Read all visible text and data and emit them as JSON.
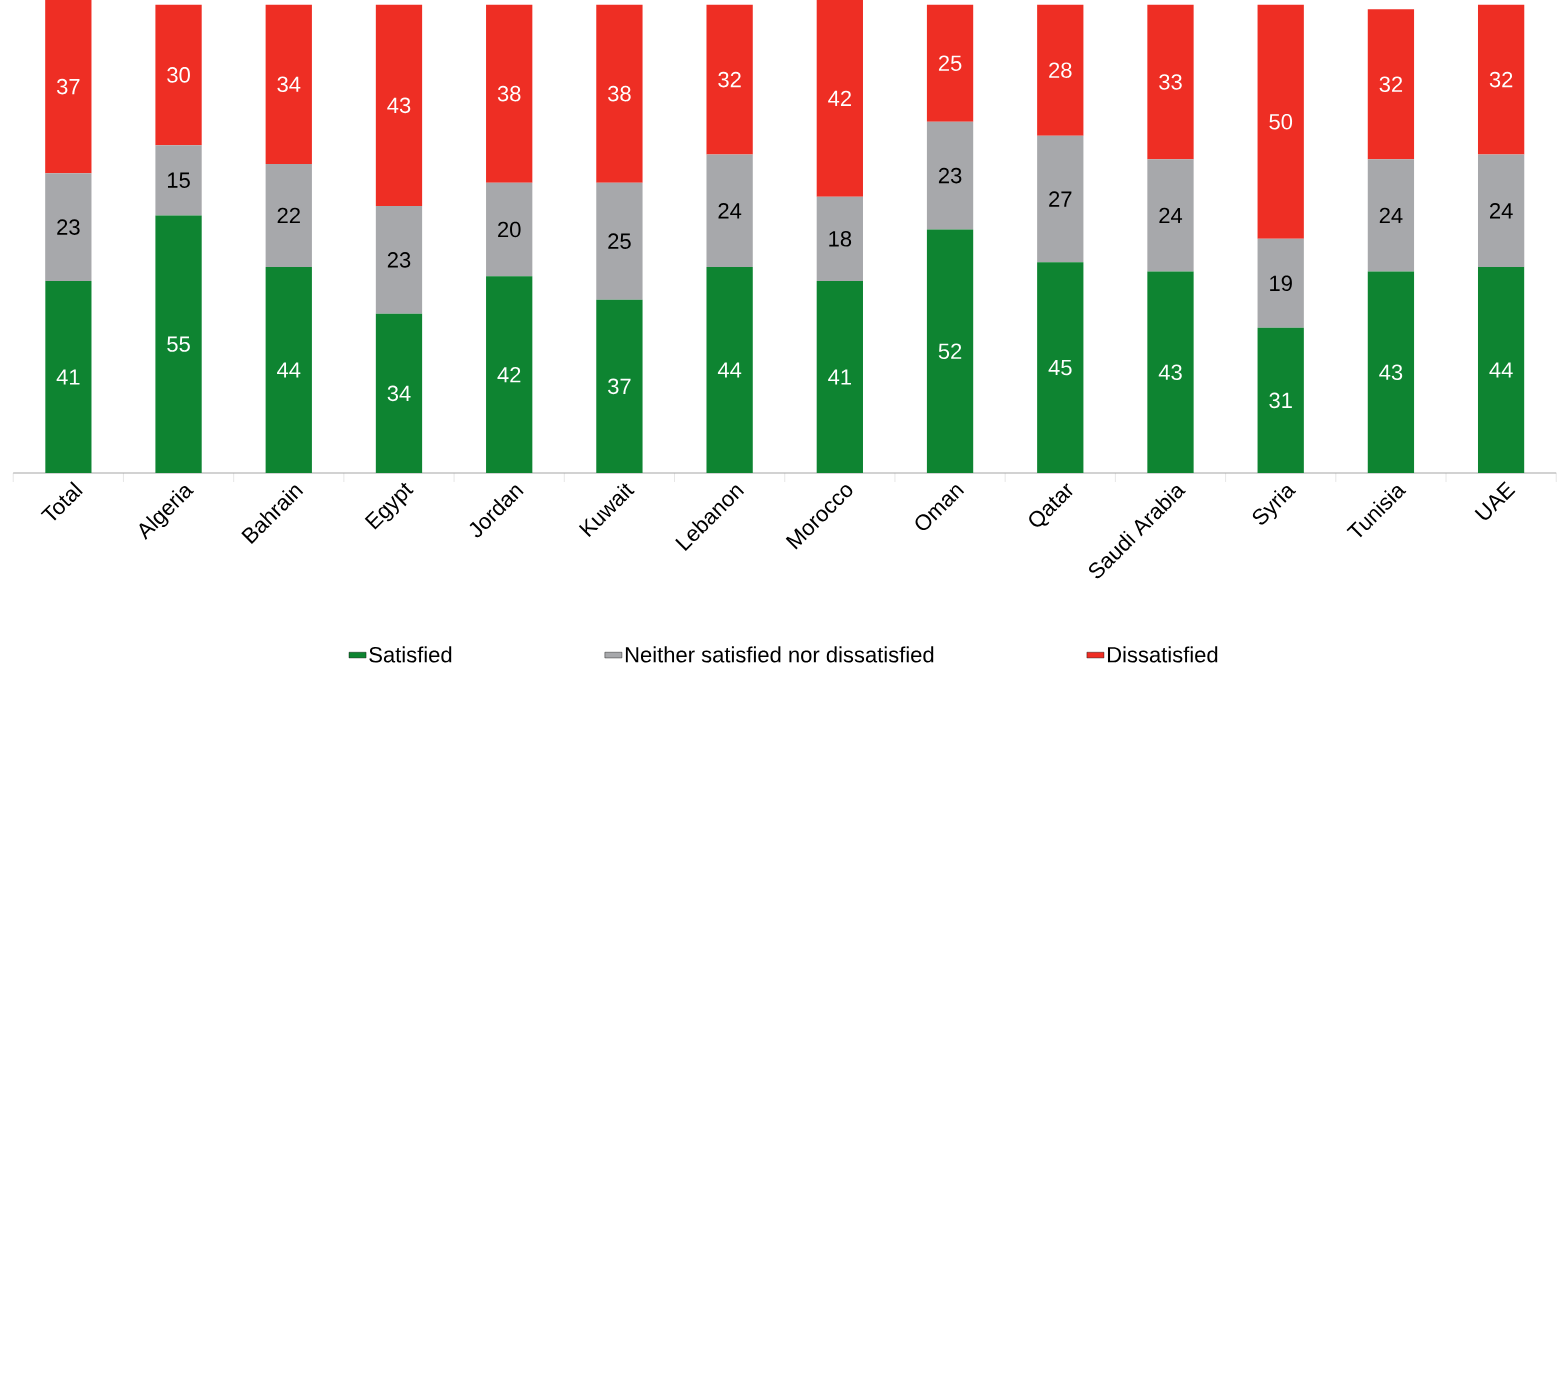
{
  "chart_data": {
    "type": "bar",
    "stacked": true,
    "data_labels": true,
    "legend": "bottom",
    "categories": [
      "Total",
      "Algeria",
      "Bahrain",
      "Egypt",
      "Jordan",
      "Kuwait",
      "Lebanon",
      "Morocco",
      "Oman",
      "Qatar",
      "Saudi Arabia",
      "Syria",
      "Tunisia",
      "UAE"
    ],
    "series": [
      {
        "name": "Satisfied",
        "color": "#0e8431",
        "values": [
          41,
          55,
          44,
          34,
          42,
          37,
          44,
          41,
          52,
          45,
          43,
          31,
          43,
          44
        ]
      },
      {
        "name": "Neither satisfied nor dissatisfied",
        "color": "#a7a8ab",
        "values": [
          23,
          15,
          22,
          23,
          20,
          25,
          24,
          18,
          23,
          27,
          24,
          19,
          24,
          24
        ]
      },
      {
        "name": "Dissatisfied",
        "color": "#ee2e24",
        "values": [
          37,
          30,
          34,
          43,
          38,
          38,
          32,
          42,
          25,
          28,
          33,
          50,
          32,
          32
        ]
      }
    ]
  }
}
